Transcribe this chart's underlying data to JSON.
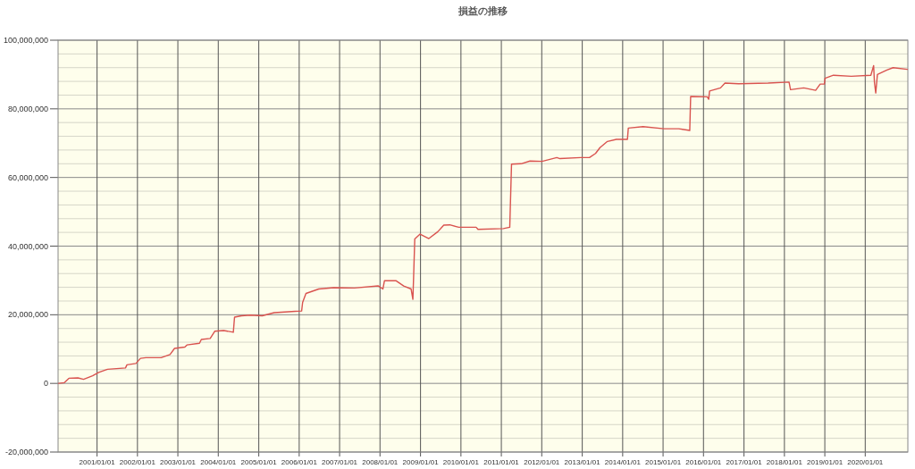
{
  "chart_data": {
    "type": "line",
    "title": "損益の推移",
    "x": [
      "2000-01-20",
      "2000-03-10",
      "2000-04-22",
      "2000-07-12",
      "2000-09-01",
      "2000-11-22",
      "2001-01-16",
      "2001-04-05",
      "2001-09-15",
      "2001-09-28",
      "2001-12-18",
      "2002-01-28",
      "2002-03-18",
      "2002-08-03",
      "2002-10-22",
      "2002-12-02",
      "2003-03-05",
      "2003-03-24",
      "2003-07-15",
      "2003-08-01",
      "2003-10-20",
      "2003-11-30",
      "2004-02-19",
      "2004-05-16",
      "2004-05-27",
      "2004-07-28",
      "2004-10-17",
      "2005-02-01",
      "2005-05-20",
      "2005-11-25",
      "2006-01-23",
      "2006-02-01",
      "2006-03-03",
      "2006-06-27",
      "2006-11-09",
      "2007-05-15",
      "2007-12-17",
      "2008-01-27",
      "2008-02-10",
      "2008-05-26",
      "2008-08-02",
      "2008-10-08",
      "2008-10-24",
      "2008-10-30",
      "2008-11-10",
      "2008-12-28",
      "2009-03-17",
      "2009-06-06",
      "2009-07-30",
      "2009-09-22",
      "2009-12-12",
      "2010-05-18",
      "2010-06-04",
      "2011-01-19",
      "2011-03-18",
      "2011-04-03",
      "2011-06-28",
      "2011-09-17",
      "2012-01-04",
      "2012-05-16",
      "2012-06-13",
      "2012-12-18",
      "2013-03-07",
      "2013-05-01",
      "2013-06-10",
      "2013-08-16",
      "2013-11-05",
      "2014-02-13",
      "2014-02-21",
      "2014-07-04",
      "2015-01-09",
      "2015-05-22",
      "2015-08-30",
      "2015-09-07",
      "2016-02-04",
      "2016-02-17",
      "2016-02-25",
      "2016-06-03",
      "2016-07-13",
      "2016-11-12",
      "2017-08-07",
      "2018-02-12",
      "2018-02-25",
      "2018-06-25",
      "2018-10-10",
      "2018-11-20",
      "2018-12-28",
      "2019-01-03",
      "2019-03-20",
      "2019-08-28",
      "2020-02-21",
      "2020-03-17",
      "2020-03-24",
      "2020-04-05",
      "2020-04-20",
      "2020-07-15",
      "2020-09-09",
      "2021-01-15"
    ],
    "series": [
      {
        "color": "#d9534f",
        "values": [
          0,
          200000,
          1500000,
          1600000,
          1200000,
          2200000,
          3200000,
          4100000,
          4500000,
          5400000,
          5800000,
          7300000,
          7500000,
          7500000,
          8400000,
          10200000,
          10600000,
          11200000,
          11700000,
          12800000,
          13100000,
          15200000,
          15400000,
          14900000,
          19300000,
          19700000,
          19900000,
          19700000,
          20600000,
          21000000,
          21100000,
          23600000,
          26200000,
          27500000,
          27900000,
          27800000,
          28400000,
          27500000,
          29900000,
          29900000,
          28400000,
          27500000,
          24500000,
          30500000,
          42100000,
          43500000,
          42200000,
          44200000,
          46100000,
          46200000,
          45500000,
          45500000,
          44900000,
          45100000,
          45500000,
          63900000,
          64000000,
          64800000,
          64700000,
          65800000,
          65500000,
          65800000,
          65800000,
          67000000,
          68700000,
          70500000,
          71100000,
          71100000,
          74400000,
          74800000,
          74200000,
          74200000,
          73700000,
          83600000,
          83500000,
          82800000,
          85200000,
          86100000,
          87500000,
          87300000,
          87500000,
          87800000,
          85600000,
          86100000,
          85400000,
          87200000,
          87200000,
          88900000,
          89800000,
          89500000,
          89800000,
          92600000,
          87800000,
          84600000,
          90000000,
          91300000,
          92000000,
          91500000
        ]
      }
    ],
    "xlim": [
      "2000-01-15",
      "2021-01-20"
    ],
    "ylim": [
      -20000000,
      100000000
    ],
    "xticks": [
      {
        "value": "2001-01-01",
        "label": "2001/01/01"
      },
      {
        "value": "2002-01-01",
        "label": "2002/01/01"
      },
      {
        "value": "2003-01-01",
        "label": "2003/01/01"
      },
      {
        "value": "2004-01-01",
        "label": "2004/01/01"
      },
      {
        "value": "2005-01-01",
        "label": "2005/01/01"
      },
      {
        "value": "2006-01-01",
        "label": "2006/01/01"
      },
      {
        "value": "2007-01-01",
        "label": "2007/01/01"
      },
      {
        "value": "2008-01-01",
        "label": "2008/01/01"
      },
      {
        "value": "2009-01-01",
        "label": "2009/01/01"
      },
      {
        "value": "2010-01-01",
        "label": "2010/01/01"
      },
      {
        "value": "2011-01-01",
        "label": "2011/01/01"
      },
      {
        "value": "2012-01-01",
        "label": "2012/01/01"
      },
      {
        "value": "2013-01-01",
        "label": "2013/01/01"
      },
      {
        "value": "2014-01-01",
        "label": "2014/01/01"
      },
      {
        "value": "2015-01-01",
        "label": "2015/01/01"
      },
      {
        "value": "2016-01-01",
        "label": "2016/01/01"
      },
      {
        "value": "2017-01-01",
        "label": "2017/01/01"
      },
      {
        "value": "2018-01-01",
        "label": "2018/01/01"
      },
      {
        "value": "2019-01-01",
        "label": "2019/01/01"
      },
      {
        "value": "2020-01-01",
        "label": "2020/01/01"
      }
    ],
    "yticks": [
      {
        "value": -20000000,
        "label": "-20,000,000"
      },
      {
        "value": -16000000,
        "label": null
      },
      {
        "value": -12000000,
        "label": null
      },
      {
        "value": -8000000,
        "label": null
      },
      {
        "value": -4000000,
        "label": null
      },
      {
        "value": 0,
        "label": "0"
      },
      {
        "value": 4000000,
        "label": null
      },
      {
        "value": 8000000,
        "label": null
      },
      {
        "value": 12000000,
        "label": null
      },
      {
        "value": 16000000,
        "label": null
      },
      {
        "value": 20000000,
        "label": "20,000,000"
      },
      {
        "value": 24000000,
        "label": null
      },
      {
        "value": 28000000,
        "label": null
      },
      {
        "value": 32000000,
        "label": null
      },
      {
        "value": 36000000,
        "label": null
      },
      {
        "value": 40000000,
        "label": "40,000,000"
      },
      {
        "value": 44000000,
        "label": null
      },
      {
        "value": 48000000,
        "label": null
      },
      {
        "value": 52000000,
        "label": null
      },
      {
        "value": 56000000,
        "label": null
      },
      {
        "value": 60000000,
        "label": "60,000,000"
      },
      {
        "value": 64000000,
        "label": null
      },
      {
        "value": 68000000,
        "label": null
      },
      {
        "value": 72000000,
        "label": null
      },
      {
        "value": 76000000,
        "label": null
      },
      {
        "value": 80000000,
        "label": "80,000,000"
      },
      {
        "value": 84000000,
        "label": null
      },
      {
        "value": 88000000,
        "label": null
      },
      {
        "value": 92000000,
        "label": null
      },
      {
        "value": 96000000,
        "label": null
      },
      {
        "value": 100000000,
        "label": "100,000,000"
      }
    ],
    "grid": true
  }
}
